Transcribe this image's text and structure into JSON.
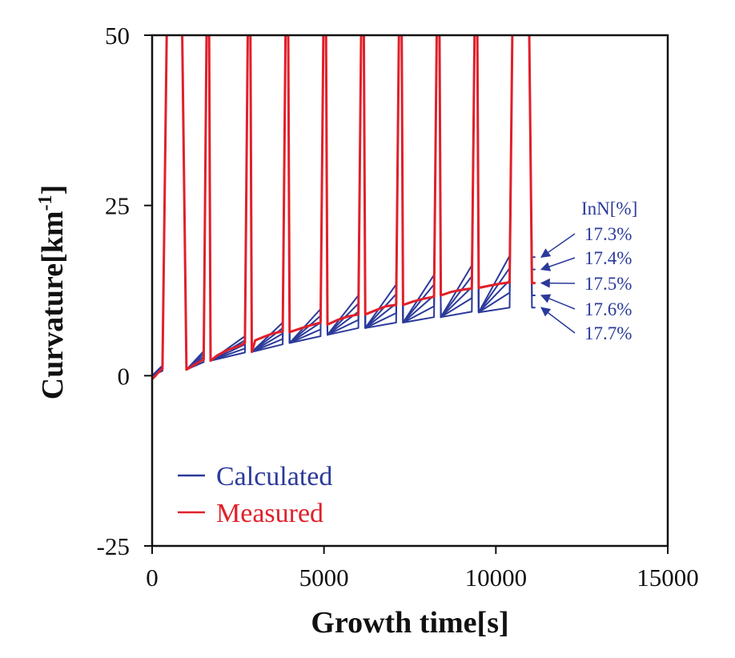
{
  "chart_data": {
    "type": "line",
    "xlabel": "Growth time[s]",
    "ylabel": "Curvature[km",
    "ylabel_sup": "-1",
    "ylabel_close": "]",
    "xlim": [
      0,
      15000
    ],
    "ylim": [
      -25,
      50
    ],
    "xticks": [
      0,
      5000,
      10000,
      15000
    ],
    "yticks": [
      -25,
      0,
      25,
      50
    ],
    "xtick_labels": [
      "0",
      "5000",
      "10000",
      "15000"
    ],
    "ytick_labels": [
      "-25",
      "0",
      "25",
      "50"
    ],
    "grid": false,
    "legend": {
      "placement": "lower-left",
      "entries": [
        {
          "label": "Calculated",
          "color": "#2b3a9a"
        },
        {
          "label": "Measured",
          "color": "#e0202a"
        }
      ]
    },
    "annotation": {
      "title": "InN[%]",
      "labels": [
        "17.3%",
        "17.4%",
        "17.5%",
        "17.6%",
        "17.7%"
      ],
      "color": "#2b3a9a"
    },
    "pulses": [
      {
        "start": 300,
        "rise_end": 450,
        "fall_start": 850,
        "fall_end": 1000,
        "low": 0.9
      },
      {
        "start": 1500,
        "rise_end": 1600,
        "fall_start": 1650,
        "fall_end": 1700,
        "low": 2.2
      },
      {
        "start": 2700,
        "rise_end": 2800,
        "fall_start": 2850,
        "fall_end": 2900,
        "low": 3.5
      },
      {
        "start": 3800,
        "rise_end": 3900,
        "fall_start": 3950,
        "fall_end": 4000,
        "low": 4.8
      },
      {
        "start": 4900,
        "rise_end": 5000,
        "fall_start": 5050,
        "fall_end": 5100,
        "low": 6.0
      },
      {
        "start": 6000,
        "rise_end": 6100,
        "fall_start": 6150,
        "fall_end": 6200,
        "low": 7.0
      },
      {
        "start": 7100,
        "rise_end": 7200,
        "fall_start": 7250,
        "fall_end": 7300,
        "low": 7.8
      },
      {
        "start": 8200,
        "rise_end": 8300,
        "fall_start": 8350,
        "fall_end": 8400,
        "low": 8.6
      },
      {
        "start": 9300,
        "rise_end": 9400,
        "fall_start": 9450,
        "fall_end": 9500,
        "low": 9.3
      },
      {
        "start": 10400,
        "rise_end": 10500,
        "fall_start": 10950,
        "fall_end": 11050,
        "low": 10.0
      }
    ],
    "series": [
      {
        "name": "17.3%",
        "kind": "Calculated",
        "segments": [
          [
            [
              0,
              0
            ],
            [
              300,
              1.5
            ]
          ],
          [
            [
              1000,
              0.9
            ],
            [
              1500,
              3.6
            ]
          ],
          [
            [
              1700,
              2.2
            ],
            [
              2700,
              5.8
            ]
          ],
          [
            [
              2900,
              3.5
            ],
            [
              3800,
              7.8
            ]
          ],
          [
            [
              4000,
              4.8
            ],
            [
              4900,
              9.8
            ]
          ],
          [
            [
              5100,
              6.0
            ],
            [
              6000,
              11.8
            ]
          ],
          [
            [
              6200,
              7.0
            ],
            [
              7100,
              13.4
            ]
          ],
          [
            [
              7300,
              7.8
            ],
            [
              8200,
              14.8
            ]
          ],
          [
            [
              8400,
              8.6
            ],
            [
              9300,
              16.2
            ]
          ],
          [
            [
              9500,
              9.3
            ],
            [
              10400,
              17.6
            ]
          ],
          [
            [
              11050,
              17.4
            ],
            [
              11150,
              17.4
            ]
          ]
        ]
      },
      {
        "name": "17.4%",
        "kind": "Calculated",
        "segments": [
          [
            [
              0,
              0
            ],
            [
              300,
              1.3
            ]
          ],
          [
            [
              1000,
              0.9
            ],
            [
              1500,
              3.2
            ]
          ],
          [
            [
              1700,
              2.2
            ],
            [
              2700,
              5.2
            ]
          ],
          [
            [
              2900,
              3.5
            ],
            [
              3800,
              7.0
            ]
          ],
          [
            [
              4000,
              4.8
            ],
            [
              4900,
              8.8
            ]
          ],
          [
            [
              5100,
              6.0
            ],
            [
              6000,
              10.6
            ]
          ],
          [
            [
              6200,
              7.0
            ],
            [
              7100,
              12.0
            ]
          ],
          [
            [
              7300,
              7.8
            ],
            [
              8200,
              13.4
            ]
          ],
          [
            [
              8400,
              8.6
            ],
            [
              9300,
              14.6
            ]
          ],
          [
            [
              9500,
              9.3
            ],
            [
              10400,
              15.8
            ]
          ],
          [
            [
              11050,
              15.6
            ],
            [
              11150,
              15.6
            ]
          ]
        ]
      },
      {
        "name": "17.5%",
        "kind": "Calculated",
        "segments": [
          [
            [
              0,
              0
            ],
            [
              300,
              1.1
            ]
          ],
          [
            [
              1000,
              0.9
            ],
            [
              1500,
              2.8
            ]
          ],
          [
            [
              1700,
              2.2
            ],
            [
              2700,
              4.6
            ]
          ],
          [
            [
              2900,
              3.5
            ],
            [
              3800,
              6.2
            ]
          ],
          [
            [
              4000,
              4.8
            ],
            [
              4900,
              7.8
            ]
          ],
          [
            [
              5100,
              6.0
            ],
            [
              6000,
              9.4
            ]
          ],
          [
            [
              6200,
              7.0
            ],
            [
              7100,
              10.6
            ]
          ],
          [
            [
              7300,
              7.8
            ],
            [
              8200,
              11.8
            ]
          ],
          [
            [
              8400,
              8.6
            ],
            [
              9300,
              13.0
            ]
          ],
          [
            [
              9500,
              9.3
            ],
            [
              10400,
              14.0
            ]
          ],
          [
            [
              11050,
              13.6
            ],
            [
              11150,
              13.6
            ]
          ]
        ]
      },
      {
        "name": "17.6%",
        "kind": "Calculated",
        "segments": [
          [
            [
              0,
              0
            ],
            [
              300,
              0.9
            ]
          ],
          [
            [
              1000,
              0.9
            ],
            [
              1500,
              2.4
            ]
          ],
          [
            [
              1700,
              2.2
            ],
            [
              2700,
              4.0
            ]
          ],
          [
            [
              2900,
              3.5
            ],
            [
              3800,
              5.4
            ]
          ],
          [
            [
              4000,
              4.8
            ],
            [
              4900,
              6.8
            ]
          ],
          [
            [
              5100,
              6.0
            ],
            [
              6000,
              8.2
            ]
          ],
          [
            [
              6200,
              7.0
            ],
            [
              7100,
              9.2
            ]
          ],
          [
            [
              7300,
              7.8
            ],
            [
              8200,
              10.2
            ]
          ],
          [
            [
              8400,
              8.6
            ],
            [
              9300,
              11.4
            ]
          ],
          [
            [
              9500,
              9.3
            ],
            [
              10400,
              12.2
            ]
          ],
          [
            [
              11050,
              11.8
            ],
            [
              11150,
              11.8
            ]
          ]
        ]
      },
      {
        "name": "17.7%",
        "kind": "Calculated",
        "segments": [
          [
            [
              0,
              0
            ],
            [
              300,
              0.7
            ]
          ],
          [
            [
              1000,
              0.9
            ],
            [
              1500,
              2.0
            ]
          ],
          [
            [
              1700,
              2.2
            ],
            [
              2700,
              3.4
            ]
          ],
          [
            [
              2900,
              3.5
            ],
            [
              3800,
              4.6
            ]
          ],
          [
            [
              4000,
              4.8
            ],
            [
              4900,
              5.8
            ]
          ],
          [
            [
              5100,
              6.0
            ],
            [
              6000,
              7.0
            ]
          ],
          [
            [
              6200,
              7.0
            ],
            [
              7100,
              7.8
            ]
          ],
          [
            [
              7300,
              7.8
            ],
            [
              8200,
              8.6
            ]
          ],
          [
            [
              8400,
              8.6
            ],
            [
              9300,
              9.4
            ]
          ],
          [
            [
              9500,
              9.3
            ],
            [
              10400,
              10.0
            ]
          ],
          [
            [
              11050,
              10.0
            ],
            [
              11150,
              10.0
            ]
          ]
        ]
      },
      {
        "name": "Measured",
        "kind": "Measured",
        "segments": [
          [
            [
              0,
              -0.5
            ],
            [
              100,
              0
            ],
            [
              200,
              0.6
            ],
            [
              300,
              1.0
            ]
          ],
          [
            [
              1000,
              0.9
            ],
            [
              1200,
              1.5
            ],
            [
              1500,
              2.4
            ]
          ],
          [
            [
              1700,
              2.2
            ],
            [
              1900,
              3.0
            ],
            [
              2200,
              3.8
            ],
            [
              2500,
              4.3
            ],
            [
              2700,
              4.8
            ]
          ],
          [
            [
              2900,
              3.5
            ],
            [
              3000,
              5.2
            ],
            [
              3200,
              5.6
            ],
            [
              3500,
              6.2
            ],
            [
              3800,
              6.5
            ]
          ],
          [
            [
              4000,
              6.4
            ],
            [
              4300,
              6.9
            ],
            [
              4600,
              7.4
            ],
            [
              4900,
              7.8
            ]
          ],
          [
            [
              5100,
              7.5
            ],
            [
              5400,
              8.2
            ],
            [
              5700,
              8.7
            ],
            [
              6000,
              9.0
            ]
          ],
          [
            [
              6200,
              9.0
            ],
            [
              6500,
              9.6
            ],
            [
              6800,
              10.2
            ],
            [
              7100,
              10.4
            ]
          ],
          [
            [
              7300,
              10.4
            ],
            [
              7600,
              10.9
            ],
            [
              7900,
              11.3
            ],
            [
              8200,
              11.6
            ]
          ],
          [
            [
              8400,
              11.8
            ],
            [
              8700,
              12.3
            ],
            [
              9000,
              12.6
            ],
            [
              9300,
              12.8
            ]
          ],
          [
            [
              9500,
              12.9
            ],
            [
              9800,
              13.2
            ],
            [
              10100,
              13.5
            ],
            [
              10400,
              13.7
            ]
          ],
          [
            [
              11050,
              13.6
            ],
            [
              11150,
              13.6
            ]
          ]
        ]
      }
    ]
  }
}
